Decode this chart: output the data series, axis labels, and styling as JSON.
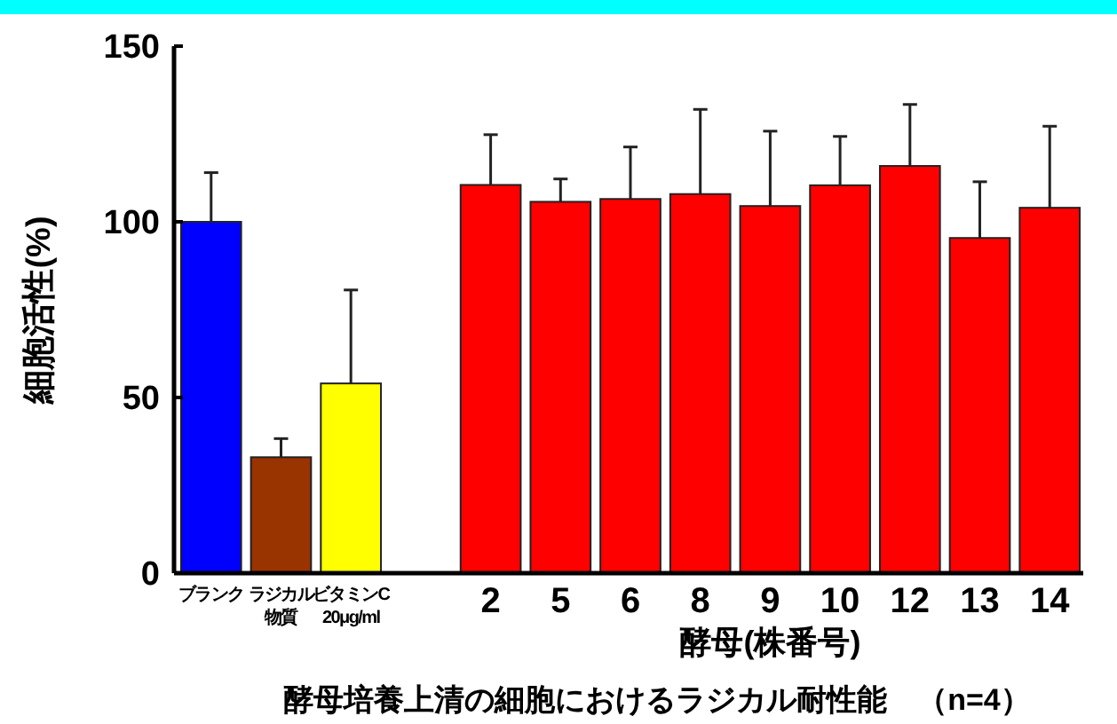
{
  "chart_data": {
    "type": "bar",
    "title": "酵母培養上清の細胞におけるラジカル耐性能　（n=4）",
    "xlabel": "酵母(株番号)",
    "ylabel": "細胞活性(%)",
    "categories": [
      "ブランク",
      "ラジカル物質",
      "ビタミンC 20μg/ml",
      null,
      "2",
      "5",
      "6",
      "8",
      "9",
      "10",
      "12",
      "13",
      "14"
    ],
    "values": [
      100,
      33,
      54,
      null,
      110.5,
      105.7,
      106.5,
      107.9,
      104.5,
      110.4,
      115.9,
      95.4,
      104
    ],
    "colors": [
      "#0000ff",
      "#993300",
      "#ffff00",
      null,
      "#ff0000",
      "#ff0000",
      "#ff0000",
      "#ff0000",
      "#ff0000",
      "#ff0000",
      "#ff0000",
      "#ff0000",
      "#ff0000"
    ],
    "errors": [
      [
        100,
        114
      ],
      [
        33,
        38.3
      ],
      [
        54,
        80.6
      ],
      null,
      [
        110.5,
        124.8
      ],
      [
        105.7,
        112.2
      ],
      [
        106.5,
        121.3
      ],
      [
        107.9,
        132
      ],
      [
        104.5,
        125.8
      ],
      [
        110.4,
        124.3
      ],
      [
        115.9,
        133.4
      ],
      [
        95.4,
        111.4
      ],
      [
        104,
        127.2
      ]
    ],
    "ylim": [
      0,
      150
    ],
    "yticks": [
      0,
      50,
      100,
      150
    ],
    "grid": false
  }
}
